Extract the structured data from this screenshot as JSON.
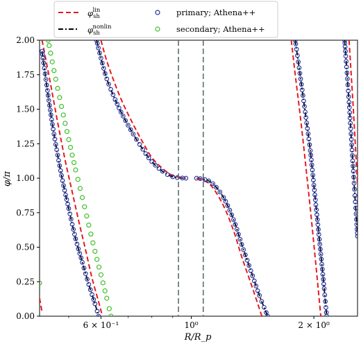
{
  "chart_data": {
    "type": "line",
    "xlabel": "R/R_p",
    "ylabel": "φ/π",
    "xscale": "log",
    "xlim": [
      0.424,
      2.56
    ],
    "ylim": [
      0,
      2.0
    ],
    "grid": false,
    "legend_position": "top",
    "yticks": [
      "0.00",
      "0.25",
      "0.50",
      "0.75",
      "1.00",
      "1.25",
      "1.50",
      "1.75",
      "2.00"
    ],
    "xticks": [
      {
        "value": 0.6,
        "label": "6 × 10⁻¹"
      },
      {
        "value": 1.0,
        "label": "10⁰"
      },
      {
        "value": 2.0,
        "label": "2 × 10⁰"
      }
    ],
    "vlines": [
      0.93,
      1.07
    ],
    "legend": [
      {
        "key": "lin",
        "sym": "φ",
        "sub": "sh",
        "sup": "lin",
        "style": "red-dashed"
      },
      {
        "key": "nonlin",
        "sym": "φ",
        "sub": "sh",
        "sup": "nonlin",
        "style": "black-dashdot"
      },
      {
        "key": "primary",
        "label": "primary; Athena++",
        "style": "blue-circle"
      },
      {
        "key": "secondary",
        "label": "secondary; Athena++",
        "style": "green-circle"
      }
    ],
    "series": {
      "primary_curve": [
        [
          0.43,
          1.92
        ],
        [
          0.445,
          1.6
        ],
        [
          0.46,
          1.32
        ],
        [
          0.48,
          1.02
        ],
        [
          0.5,
          0.78
        ],
        [
          0.52,
          0.56
        ],
        [
          0.54,
          0.39
        ],
        [
          0.56,
          0.23
        ],
        [
          0.58,
          0.09
        ],
        [
          0.592,
          0.0
        ]
      ],
      "center_left": [
        [
          0.585,
          2.0
        ],
        [
          0.6,
          1.87
        ],
        [
          0.62,
          1.72
        ],
        [
          0.65,
          1.57
        ],
        [
          0.68,
          1.45
        ],
        [
          0.72,
          1.32
        ],
        [
          0.76,
          1.21
        ],
        [
          0.8,
          1.12
        ],
        [
          0.85,
          1.05
        ],
        [
          0.9,
          1.01
        ],
        [
          0.97,
          1.0
        ]
      ],
      "center_right": [
        [
          1.03,
          1.0
        ],
        [
          1.08,
          0.99
        ],
        [
          1.13,
          0.96
        ],
        [
          1.2,
          0.86
        ],
        [
          1.27,
          0.7
        ],
        [
          1.33,
          0.52
        ],
        [
          1.4,
          0.33
        ],
        [
          1.47,
          0.15
        ],
        [
          1.54,
          0.0
        ]
      ],
      "right_curve": [
        [
          1.8,
          2.0
        ],
        [
          1.84,
          1.8
        ],
        [
          1.88,
          1.6
        ],
        [
          1.92,
          1.4
        ],
        [
          1.96,
          1.2
        ],
        [
          2.0,
          0.95
        ],
        [
          2.04,
          0.7
        ],
        [
          2.08,
          0.45
        ],
        [
          2.12,
          0.2
        ],
        [
          2.15,
          0.0
        ]
      ],
      "far_right_curve": [
        [
          2.38,
          2.0
        ],
        [
          2.44,
          1.55
        ],
        [
          2.5,
          1.05
        ],
        [
          2.56,
          0.58
        ]
      ],
      "secondary_left": [
        [
          0.445,
          2.0
        ],
        [
          0.46,
          1.78
        ],
        [
          0.48,
          1.52
        ],
        [
          0.5,
          1.28
        ],
        [
          0.52,
          1.06
        ],
        [
          0.54,
          0.86
        ],
        [
          0.56,
          0.66
        ],
        [
          0.58,
          0.47
        ],
        [
          0.6,
          0.3
        ],
        [
          0.62,
          0.13
        ],
        [
          0.635,
          0.0
        ]
      ],
      "secondary_edge": [
        [
          0.424,
          0.24
        ]
      ],
      "lin_left": [
        [
          0.43,
          2.0
        ],
        [
          0.45,
          1.7
        ],
        [
          0.47,
          1.4
        ],
        [
          0.49,
          1.13
        ],
        [
          0.51,
          0.9
        ],
        [
          0.53,
          0.68
        ],
        [
          0.55,
          0.48
        ],
        [
          0.57,
          0.28
        ],
        [
          0.59,
          0.12
        ],
        [
          0.605,
          0.0
        ]
      ],
      "lin_edge": [
        [
          0.424,
          0.13
        ],
        [
          0.43,
          0.03
        ]
      ],
      "lin_center_left": [
        [
          0.6,
          2.0
        ],
        [
          0.62,
          1.85
        ],
        [
          0.65,
          1.68
        ],
        [
          0.68,
          1.54
        ],
        [
          0.72,
          1.39
        ],
        [
          0.76,
          1.26
        ],
        [
          0.8,
          1.15
        ],
        [
          0.85,
          1.07
        ],
        [
          0.9,
          1.02
        ],
        [
          0.97,
          1.0
        ]
      ],
      "lin_center_right": [
        [
          1.03,
          1.0
        ],
        [
          1.08,
          0.98
        ],
        [
          1.13,
          0.93
        ],
        [
          1.2,
          0.8
        ],
        [
          1.27,
          0.62
        ],
        [
          1.33,
          0.43
        ],
        [
          1.4,
          0.24
        ],
        [
          1.46,
          0.08
        ],
        [
          1.49,
          0.0
        ]
      ],
      "lin_right": [
        [
          1.76,
          2.0
        ],
        [
          1.8,
          1.75
        ],
        [
          1.84,
          1.52
        ],
        [
          1.88,
          1.28
        ],
        [
          1.92,
          1.03
        ],
        [
          1.96,
          0.78
        ],
        [
          2.0,
          0.52
        ],
        [
          2.04,
          0.26
        ],
        [
          2.08,
          0.0
        ]
      ],
      "lin_far_right": [
        [
          2.44,
          2.0
        ],
        [
          2.5,
          1.5
        ],
        [
          2.56,
          0.95
        ]
      ]
    }
  }
}
